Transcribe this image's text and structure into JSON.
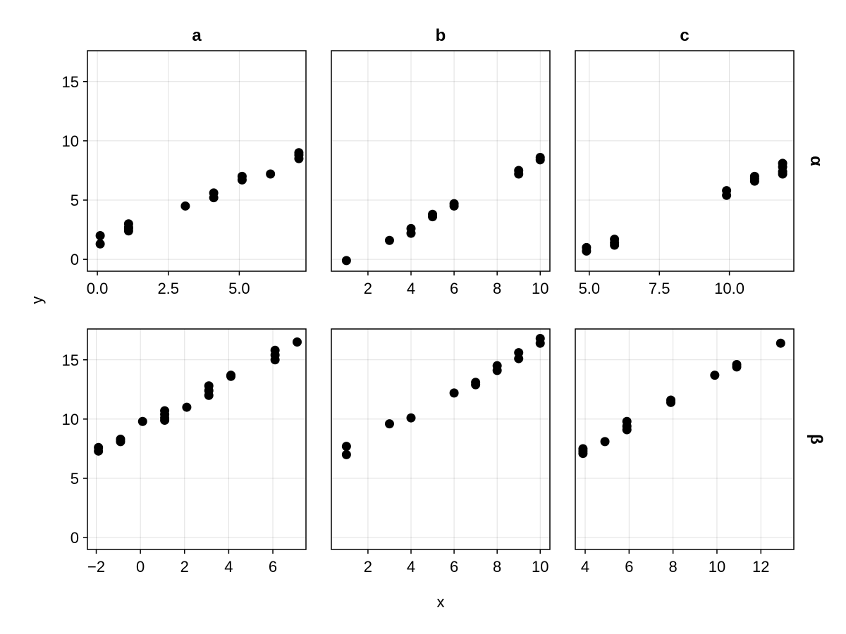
{
  "chart_data": {
    "type": "scatter",
    "layout": "facet-grid 2 rows x 3 columns, shared y axis",
    "xlabel": "x",
    "ylabel": "y",
    "column_labels": [
      "a",
      "b",
      "c"
    ],
    "row_labels": [
      "α",
      "β"
    ],
    "ylim": [
      -1,
      17.6
    ],
    "y_ticks": [
      0,
      5,
      10,
      15
    ],
    "y_tick_labels": [
      "0",
      "5",
      "10",
      "15"
    ],
    "grid": true,
    "marker_color": "#000000",
    "panels": [
      {
        "row": "α",
        "col": "a",
        "xlim": [
          -0.35,
          7.35
        ],
        "x_ticks": [
          0,
          2.5,
          5
        ],
        "x_tick_labels": [
          "0.0",
          "2.5",
          "5.0"
        ],
        "x": [
          0.1,
          0.1,
          1.1,
          1.1,
          1.1,
          1.1,
          3.1,
          4.1,
          4.1,
          5.1,
          5.1,
          6.1,
          7.1,
          7.1,
          7.1
        ],
        "y": [
          2.0,
          1.3,
          3.0,
          2.7,
          2.4,
          2.6,
          4.5,
          5.6,
          5.2,
          7.0,
          6.7,
          7.2,
          9.0,
          8.8,
          8.5
        ]
      },
      {
        "row": "α",
        "col": "b",
        "xlim": [
          0.3,
          10.45
        ],
        "x_ticks": [
          2,
          4,
          6,
          8,
          10
        ],
        "x_tick_labels": [
          "2",
          "4",
          "6",
          "8",
          "10"
        ],
        "x": [
          1,
          3,
          4,
          4,
          5,
          5,
          6,
          6,
          9,
          9,
          10,
          10
        ],
        "y": [
          -0.1,
          1.6,
          2.6,
          2.2,
          3.8,
          3.6,
          4.7,
          4.5,
          7.5,
          7.2,
          8.6,
          8.4
        ]
      },
      {
        "row": "α",
        "col": "c",
        "xlim": [
          4.5,
          12.3
        ],
        "x_ticks": [
          5,
          7.5,
          10
        ],
        "x_tick_labels": [
          "5.0",
          "7.5",
          "10.0"
        ],
        "x": [
          4.9,
          4.9,
          5.9,
          5.9,
          5.9,
          9.9,
          9.9,
          10.9,
          10.9,
          10.9,
          11.9,
          11.9,
          11.9,
          11.9
        ],
        "y": [
          1.0,
          0.7,
          1.7,
          1.4,
          1.2,
          5.8,
          5.4,
          7.0,
          6.8,
          6.6,
          8.1,
          7.8,
          7.4,
          7.2
        ]
      },
      {
        "row": "β",
        "col": "a",
        "xlim": [
          -2.4,
          7.5
        ],
        "x_ticks": [
          -2,
          0,
          2,
          4,
          6
        ],
        "x_tick_labels": [
          "−2",
          "0",
          "2",
          "4",
          "6"
        ],
        "x": [
          -1.9,
          -1.9,
          -0.9,
          -0.9,
          0.1,
          1.1,
          1.1,
          1.1,
          1.1,
          2.1,
          3.1,
          3.1,
          3.1,
          4.1,
          4.1,
          6.1,
          6.1,
          6.1,
          7.1
        ],
        "y": [
          7.6,
          7.3,
          8.3,
          8.1,
          9.8,
          10.7,
          10.4,
          10.1,
          9.9,
          11.0,
          12.8,
          12.4,
          12.0,
          13.7,
          13.6,
          15.8,
          15.4,
          15.0,
          16.5
        ]
      },
      {
        "row": "β",
        "col": "b",
        "xlim": [
          0.3,
          10.45
        ],
        "x_ticks": [
          2,
          4,
          6,
          8,
          10
        ],
        "x_tick_labels": [
          "2",
          "4",
          "6",
          "8",
          "10"
        ],
        "x": [
          1,
          1,
          3,
          4,
          6,
          7,
          7,
          8,
          8,
          9,
          9,
          10,
          10
        ],
        "y": [
          7.7,
          7.0,
          9.6,
          10.1,
          12.2,
          13.1,
          12.9,
          14.5,
          14.1,
          15.6,
          15.1,
          16.8,
          16.4
        ]
      },
      {
        "row": "β",
        "col": "c",
        "xlim": [
          3.55,
          13.5
        ],
        "x_ticks": [
          4,
          6,
          8,
          10,
          12
        ],
        "x_tick_labels": [
          "4",
          "6",
          "8",
          "10",
          "12"
        ],
        "x": [
          3.9,
          3.9,
          3.9,
          4.9,
          5.9,
          5.9,
          5.9,
          7.9,
          7.9,
          9.9,
          10.9,
          10.9,
          12.9
        ],
        "y": [
          7.5,
          7.3,
          7.1,
          8.1,
          9.8,
          9.4,
          9.1,
          11.6,
          11.4,
          13.7,
          14.6,
          14.4,
          16.4
        ]
      }
    ]
  }
}
